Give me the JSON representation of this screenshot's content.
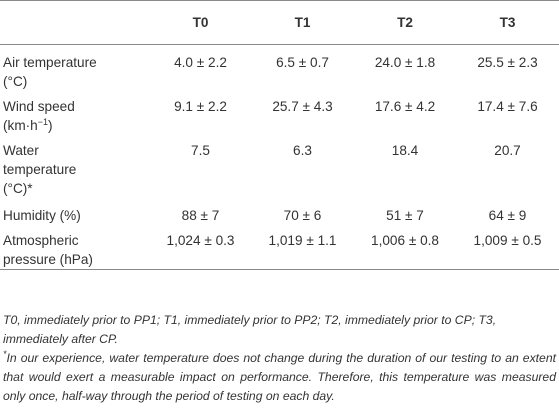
{
  "table": {
    "columns": [
      "",
      "T0",
      "T1",
      "T2",
      "T3"
    ],
    "rows": [
      {
        "label_line1": "Air temperature",
        "label_line2": "(°C)",
        "values": [
          "4.0 ± 2.2",
          "6.5 ± 0.7",
          "24.0 ± 1.8",
          "25.5 ± 2.3"
        ]
      },
      {
        "label_line1": "Wind speed",
        "label_line2_base": "(km·h",
        "label_line2_sup": "−1",
        "label_line2_end": ")",
        "values": [
          "9.1 ± 2.2",
          "25.7 ± 4.3",
          "17.6 ± 4.2",
          "17.4 ± 7.6"
        ]
      },
      {
        "label_line1": "Water",
        "label_line2": "temperature",
        "label_line3": "(°C)*",
        "values": [
          "7.5",
          "6.3",
          "18.4",
          "20.7"
        ]
      },
      {
        "label_line1": "Humidity (%)",
        "values": [
          "88 ± 7",
          "70 ± 6",
          "51 ± 7",
          "64 ± 9"
        ]
      },
      {
        "label_line1": "Atmospheric",
        "label_line2": "pressure (hPa)",
        "values": [
          "1,024 ± 0.3",
          "1,019 ± 1.1",
          "1,006 ± 0.8",
          "1,009 ± 0.5"
        ]
      }
    ]
  },
  "notes": {
    "abbreviations": "T0, immediately prior to PP1; T1, immediately prior to PP2; T2, immediately prior to CP; T3, immediately after CP.",
    "footnote_marker": "*",
    "footnote_text": "In our experience, water temperature does not change during the duration of our testing to an extent that would exert a measurable impact on performance. Therefore, this temperature was measured only once, half-way through the period of testing on each day."
  }
}
